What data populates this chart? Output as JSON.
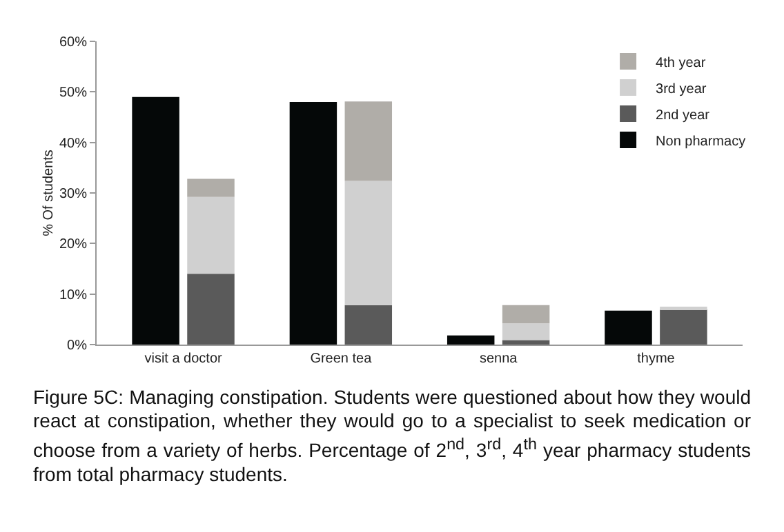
{
  "chart_data": {
    "type": "bar",
    "ylabel": "% Of students",
    "categories": [
      "visit a doctor",
      "Green tea",
      "senna",
      "thyme"
    ],
    "ylim": [
      0,
      60
    ],
    "yticks": [
      {
        "value": 0,
        "label": "0%"
      },
      {
        "value": 10,
        "label": "10%"
      },
      {
        "value": 20,
        "label": "20%"
      },
      {
        "value": 30,
        "label": "30%"
      },
      {
        "value": 40,
        "label": "40%"
      },
      {
        "value": 50,
        "label": "50%"
      },
      {
        "value": 60,
        "label": "60%"
      }
    ],
    "grid": false,
    "legend": "top right",
    "series": [
      {
        "name": "Non pharmacy",
        "color": "#050808",
        "values": [
          49,
          48,
          1.8,
          6.7
        ]
      },
      {
        "name": "2nd year",
        "color": "#5a5a5a",
        "base": [
          0,
          0,
          0,
          0
        ],
        "values": [
          14,
          7.8,
          0.9,
          7
        ]
      },
      {
        "name": "3rd year",
        "color": "#d0d0d0",
        "base": [
          14,
          7.8,
          0.9,
          7
        ],
        "values": [
          15.2,
          24.6,
          3.3,
          0.5
        ]
      },
      {
        "name": "4th year",
        "color": "#b0ada8",
        "base": [
          29.2,
          32.4,
          4.2,
          null
        ],
        "values": [
          3.6,
          15.7,
          3.6,
          null
        ]
      }
    ],
    "annotations": [
      "Figure 5C: Managing constipation. Students were questioned about how they would react at constipation, whether they would go to a specialist to seek medication or choose from a variety of herbs. Percentage of 2$^{nd}$, 3$^{rd}$, 4$^{th}$ year pharmacy students from total pharmacy students."
    ]
  }
}
